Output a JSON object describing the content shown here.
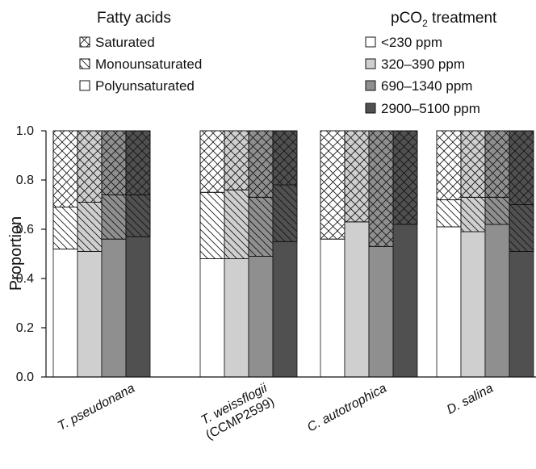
{
  "chart_data": {
    "type": "bar",
    "stacked": true,
    "ylabel": "Proportion",
    "xlabel": "",
    "ylim": [
      0,
      1.0
    ],
    "yticks": [
      "0.0",
      "0.2",
      "0.4",
      "0.6",
      "0.8",
      "1.0"
    ],
    "categories": [
      {
        "line1": "T. pseudonana",
        "line2": ""
      },
      {
        "line1": "T. weissflogii",
        "line2": "(CCMP2599)"
      },
      {
        "line1": "C. autotrophica",
        "line2": ""
      },
      {
        "line1": "D. salina",
        "line2": ""
      }
    ],
    "legend_fatty": {
      "title": "Fatty acids",
      "items": [
        "Saturated",
        "Monounsaturated",
        "Polyunsaturated"
      ]
    },
    "legend_pco2": {
      "title_main": "pCO",
      "title_sub": "2",
      "title_rest": " treatment",
      "items": [
        "<230 ppm",
        "320–390 ppm",
        "690–1340 ppm",
        "2900–5100 ppm"
      ]
    },
    "treatment_colors": [
      "#ffffff",
      "#cfcfcf",
      "#8f8f8f",
      "#505050"
    ],
    "groups": [
      {
        "bars": [
          {
            "poly": 0.52,
            "mono": 0.17,
            "sat": 0.31
          },
          {
            "poly": 0.51,
            "mono": 0.2,
            "sat": 0.29
          },
          {
            "poly": 0.56,
            "mono": 0.18,
            "sat": 0.26
          },
          {
            "poly": 0.57,
            "mono": 0.17,
            "sat": 0.26
          }
        ]
      },
      {
        "bars": [
          {
            "poly": 0.48,
            "mono": 0.27,
            "sat": 0.25
          },
          {
            "poly": 0.48,
            "mono": 0.28,
            "sat": 0.24
          },
          {
            "poly": 0.49,
            "mono": 0.24,
            "sat": 0.27
          },
          {
            "poly": 0.55,
            "mono": 0.23,
            "sat": 0.22
          }
        ]
      },
      {
        "bars": [
          {
            "poly": 0.56,
            "mono": 0.0,
            "sat": 0.44
          },
          {
            "poly": 0.63,
            "mono": 0.0,
            "sat": 0.37
          },
          {
            "poly": 0.53,
            "mono": 0.0,
            "sat": 0.47
          },
          {
            "poly": 0.62,
            "mono": 0.0,
            "sat": 0.38
          }
        ]
      },
      {
        "bars": [
          {
            "poly": 0.61,
            "mono": 0.11,
            "sat": 0.28
          },
          {
            "poly": 0.59,
            "mono": 0.14,
            "sat": 0.27
          },
          {
            "poly": 0.62,
            "mono": 0.11,
            "sat": 0.27
          },
          {
            "poly": 0.51,
            "mono": 0.19,
            "sat": 0.3
          }
        ]
      }
    ]
  }
}
